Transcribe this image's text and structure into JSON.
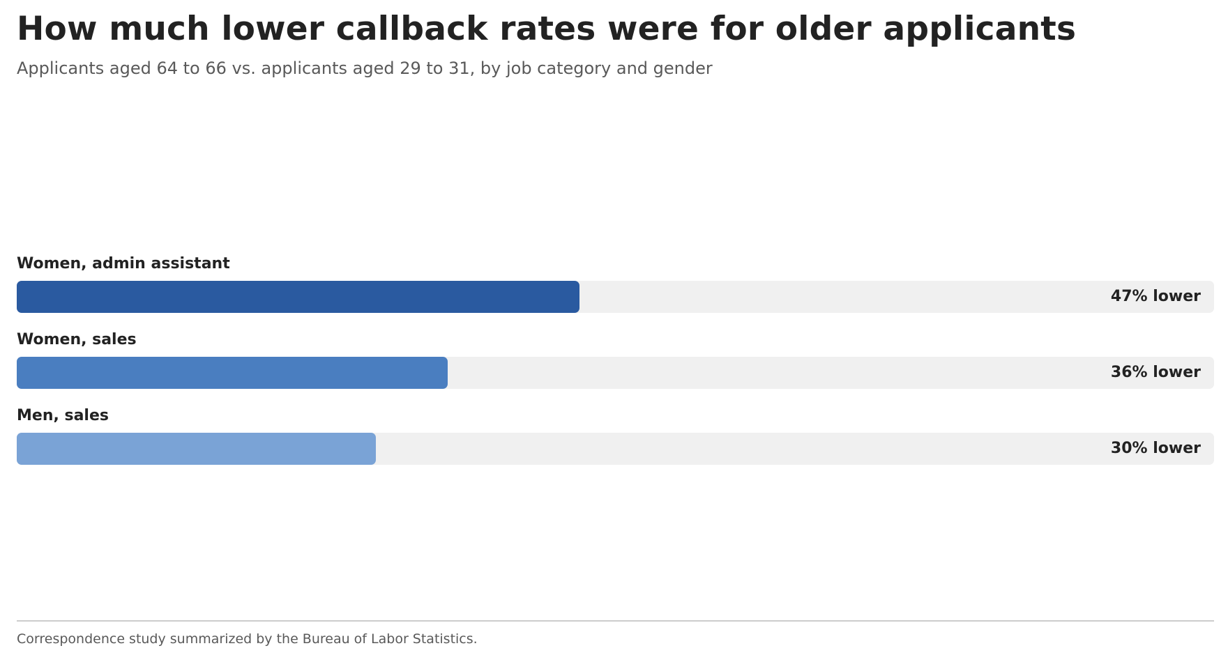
{
  "chart_data": {
    "type": "bar",
    "orientation": "horizontal",
    "title": "How much lower callback rates were for older applicants",
    "subtitle": "Applicants aged 64 to 66 vs. applicants aged 29 to 31, by job category and gender",
    "categories": [
      "Women, admin assistant",
      "Women, sales",
      "Men, sales"
    ],
    "values": [
      47,
      36,
      30
    ],
    "value_labels": [
      "47% lower",
      "36% lower",
      "30% lower"
    ],
    "colors": [
      "#2a5aa0",
      "#4a7ec0",
      "#7aa3d6"
    ],
    "track_color": "#f0f0f0",
    "xlim": [
      0,
      100
    ],
    "grid": false,
    "legend": "none",
    "footnote": "Correspondence study summarized by the Bureau of Labor Statistics."
  }
}
